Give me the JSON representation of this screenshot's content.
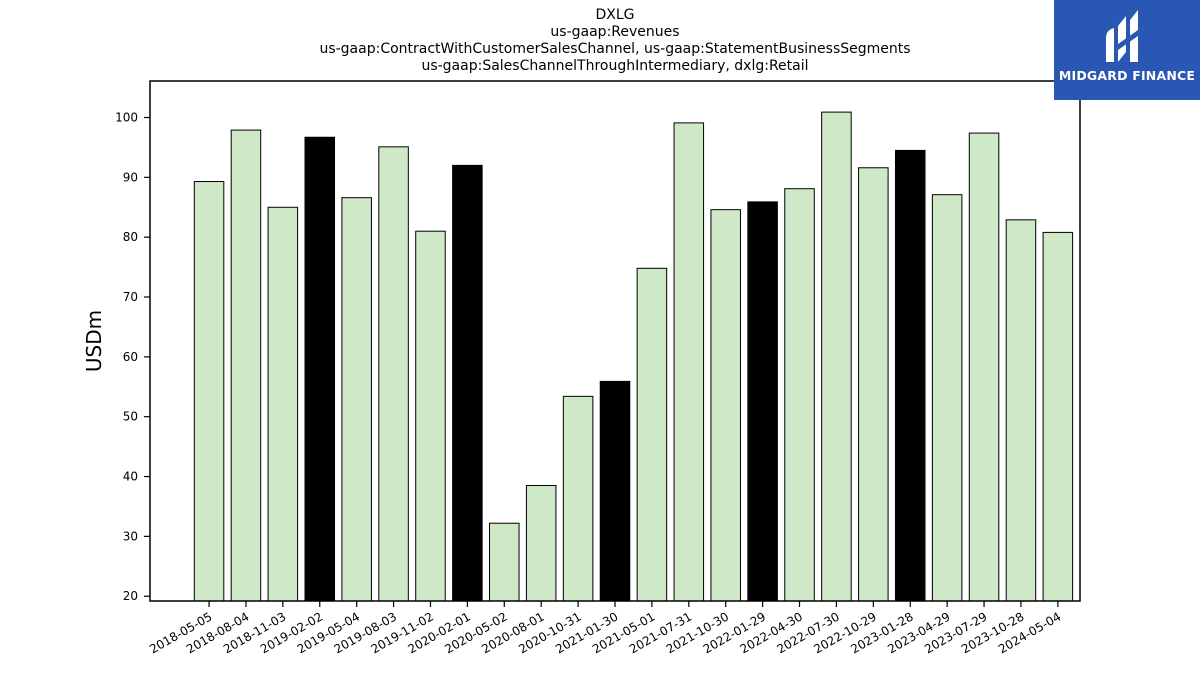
{
  "chart_data": {
    "type": "bar",
    "title_lines": [
      "DXLG",
      "us-gaap:Revenues",
      "us-gaap:ContractWithCustomerSalesChannel, us-gaap:StatementBusinessSegments",
      "us-gaap:SalesChannelThroughIntermediary, dxlg:Retail"
    ],
    "ylabel": "USDm",
    "xlabel": "",
    "ylim": [
      19.2,
      106.1
    ],
    "yticks": [
      20,
      30,
      40,
      50,
      60,
      70,
      80,
      90,
      100
    ],
    "categories": [
      "2018-05-05",
      "2018-08-04",
      "2018-11-03",
      "2019-02-02",
      "2019-05-04",
      "2019-08-03",
      "2019-11-02",
      "2020-02-01",
      "2020-05-02",
      "2020-08-01",
      "2020-10-31",
      "2021-01-30",
      "2021-05-01",
      "2021-07-31",
      "2021-10-30",
      "2022-01-29",
      "2022-04-30",
      "2022-07-30",
      "2022-10-29",
      "2023-01-28",
      "2023-04-29",
      "2023-07-29",
      "2023-10-28",
      "2024-05-04"
    ],
    "values": [
      89.3,
      97.9,
      85.0,
      96.7,
      86.6,
      95.1,
      81.0,
      92.0,
      32.2,
      38.5,
      53.4,
      55.9,
      74.8,
      99.1,
      84.6,
      85.9,
      88.1,
      100.9,
      91.6,
      94.5,
      87.1,
      97.4,
      82.9,
      80.8
    ],
    "fiscal_year_end": [
      false,
      false,
      false,
      true,
      false,
      false,
      false,
      true,
      false,
      false,
      false,
      true,
      false,
      false,
      false,
      true,
      false,
      false,
      false,
      true,
      false,
      false,
      false,
      false
    ],
    "colors": {
      "bar": "#cfe8c8",
      "fiscal_year_end_bar": "#000000",
      "edge": "#000000"
    },
    "grid": false,
    "legend": "none"
  },
  "logo": {
    "text": "MIDGARD FINANCE",
    "background": "#2a57b4"
  }
}
